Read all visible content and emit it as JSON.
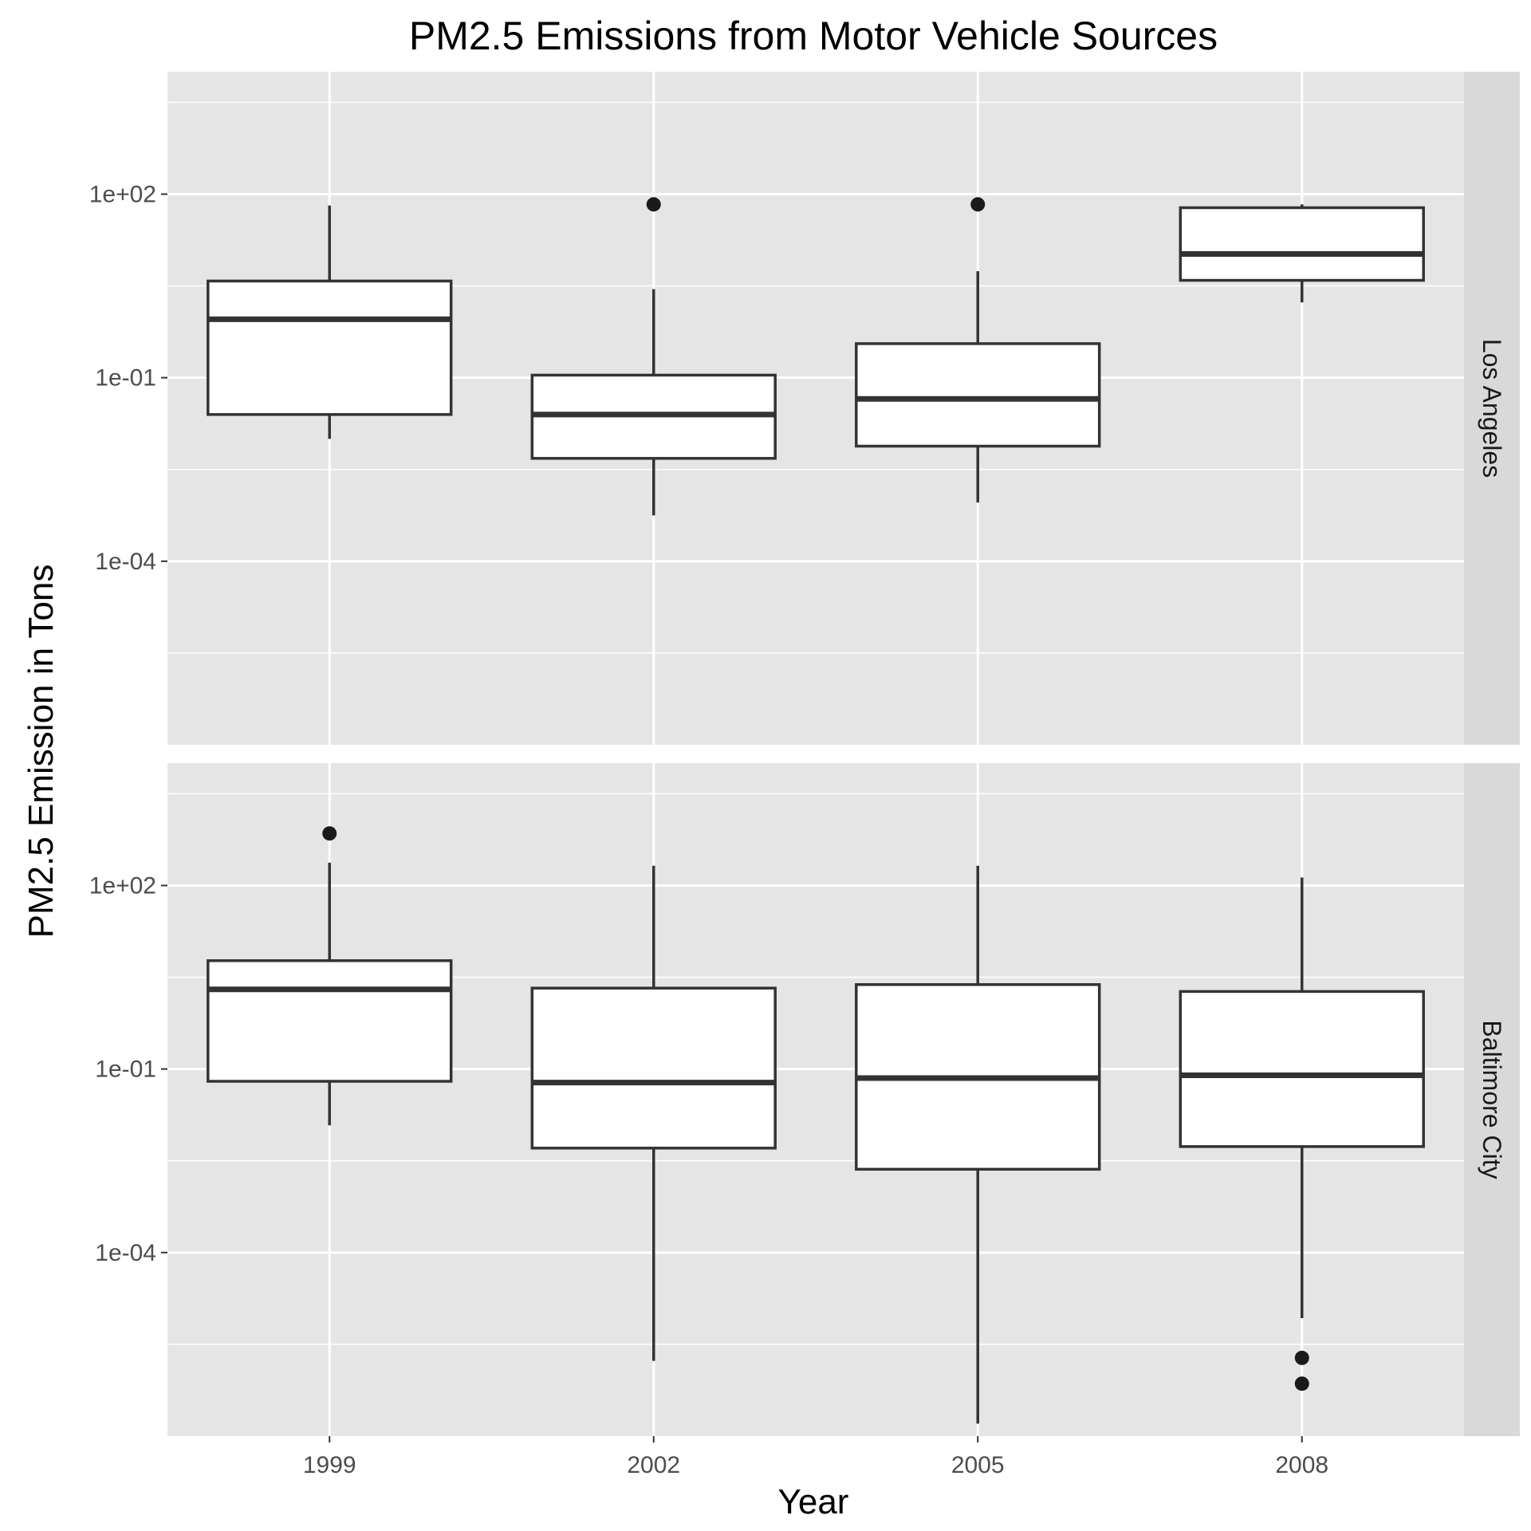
{
  "chart_data": {
    "type": "boxplot",
    "title": "PM2.5 Emissions from Motor Vehicle Sources",
    "xlabel": "Year",
    "ylabel": "PM2.5 Emission in Tons",
    "y_scale": "log10",
    "ylim": [
      1e-07,
      10000
    ],
    "y_ticks": [
      0.0001,
      0.1,
      100
    ],
    "y_tick_labels": [
      "1e-04",
      "1e-01",
      "1e+02"
    ],
    "categories": [
      "1999",
      "2002",
      "2005",
      "2008"
    ],
    "colors": {
      "panel": "#e5e5e5",
      "strip": "#d9d9d9",
      "grid": "#ffffff",
      "box_fill": "#ffffff",
      "box_line": "#333333",
      "outlier": "#1a1a1a"
    },
    "panels": [
      {
        "name": "Los Angeles",
        "boxes": [
          {
            "x": "1999",
            "whisker_low": 0.01,
            "q1": 0.025,
            "median": 0.9,
            "q3": 3.8,
            "whisker_high": 65,
            "outliers": []
          },
          {
            "x": "2002",
            "whisker_low": 0.00056,
            "q1": 0.0048,
            "median": 0.025,
            "q3": 0.11,
            "whisker_high": 2.8,
            "outliers": [
              68
            ]
          },
          {
            "x": "2005",
            "whisker_low": 0.00091,
            "q1": 0.0076,
            "median": 0.045,
            "q3": 0.36,
            "whisker_high": 5.5,
            "outliers": [
              68
            ]
          },
          {
            "x": "2008",
            "whisker_low": 1.7,
            "q1": 3.9,
            "median": 10.5,
            "q3": 60,
            "whisker_high": 68,
            "outliers": []
          }
        ]
      },
      {
        "name": "Baltimore City",
        "boxes": [
          {
            "x": "1999",
            "whisker_low": 0.012,
            "q1": 0.063,
            "median": 2.0,
            "q3": 5.9,
            "whisker_high": 236,
            "outliers": [
              708
            ]
          },
          {
            "x": "2002",
            "whisker_low": 1.7e-06,
            "q1": 0.0051,
            "median": 0.06,
            "q3": 2.1,
            "whisker_high": 210,
            "outliers": []
          },
          {
            "x": "2005",
            "whisker_low": 1.6e-07,
            "q1": 0.0023,
            "median": 0.071,
            "q3": 2.4,
            "whisker_high": 210,
            "outliers": []
          },
          {
            "x": "2008",
            "whisker_low": 8.5e-06,
            "q1": 0.0054,
            "median": 0.079,
            "q3": 1.85,
            "whisker_high": 135,
            "outliers": [
              1.9e-06,
              7.2e-07
            ]
          }
        ]
      }
    ]
  }
}
